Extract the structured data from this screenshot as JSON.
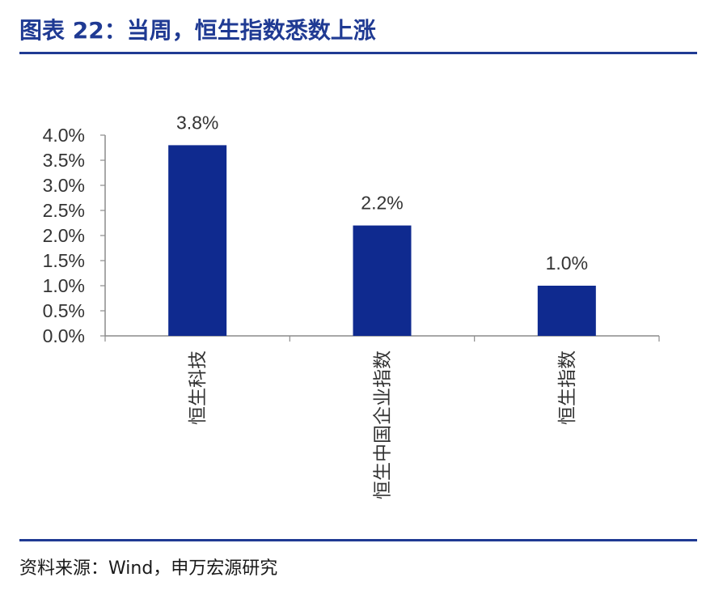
{
  "title": "图表 22：当周，恒生指数悉数上涨",
  "source": "资料来源：Wind，申万宏源研究",
  "colors": {
    "accent": "#1f3a93",
    "bar": "#0f2a8f",
    "axis": "#8c8c8c",
    "text": "#333333"
  },
  "chart_data": {
    "type": "bar",
    "categories": [
      "恒生科技",
      "恒生中国企业指数",
      "恒生指数"
    ],
    "values": [
      3.8,
      2.2,
      1.0
    ],
    "value_labels": [
      "3.8%",
      "2.2%",
      "1.0%"
    ],
    "y_ticks": [
      "0.0%",
      "0.5%",
      "1.0%",
      "1.5%",
      "2.0%",
      "2.5%",
      "3.0%",
      "3.5%",
      "4.0%"
    ],
    "ylim": [
      0,
      4.0
    ],
    "title": "",
    "xlabel": "",
    "ylabel": "",
    "grid": false,
    "legend": "none"
  }
}
